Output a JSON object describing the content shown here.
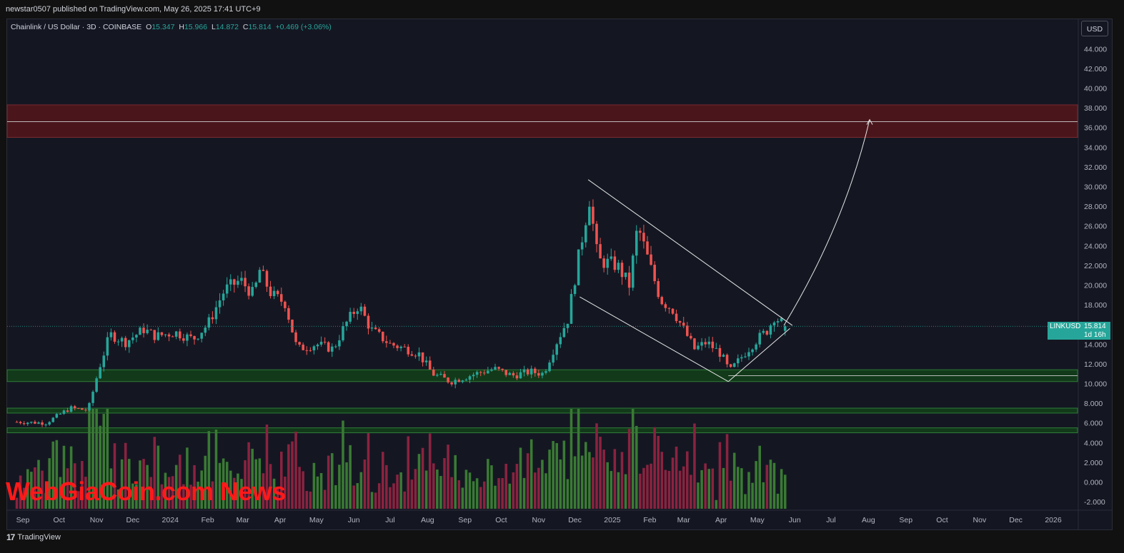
{
  "topbar": {
    "publisher_line": "newstar0507 published on TradingView.com, May 26, 2025 17:41 UTC+9"
  },
  "legend": {
    "title": "Chainlink / US Dollar · 3D · COINBASE",
    "o_label": "O",
    "o_value": "15.347",
    "h_label": "H",
    "h_value": "15.966",
    "l_label": "L",
    "l_value": "14.872",
    "c_label": "C",
    "c_value": "15.814",
    "change": "+0.469 (+3.06%)"
  },
  "currency_button": "USD",
  "price_tag": {
    "symbol": "LINKUSD",
    "price": "15.814",
    "countdown": "1d 16h"
  },
  "footer": {
    "logo_icon": "tradingview-icon",
    "brand": "TradingView"
  },
  "watermark": "WebGiaCoin.com News",
  "colors": {
    "up": "#26a69a",
    "down": "#ef5350",
    "vol_up": "#3a7a34",
    "vol_down": "#8a2340",
    "resistance_zone": "#4a161c",
    "support_zone": "#123a1a"
  },
  "chart_data": {
    "type": "candlestick",
    "title": "Chainlink / US Dollar · 3D · COINBASE",
    "y_ticks": [
      -2,
      0,
      2,
      4,
      6,
      8,
      10,
      12,
      14,
      16,
      18,
      20,
      22,
      24,
      26,
      28,
      30,
      32,
      34,
      36,
      38,
      40,
      42,
      44
    ],
    "x_ticks": [
      "Sep",
      "Oct",
      "Nov",
      "Dec",
      "2024",
      "Feb",
      "Mar",
      "Apr",
      "May",
      "Jun",
      "Jul",
      "Aug",
      "Sep",
      "Oct",
      "Nov",
      "Dec",
      "2025",
      "Feb",
      "Mar",
      "Apr",
      "May",
      "Jun",
      "Jul",
      "Aug",
      "Sep",
      "Oct",
      "Nov",
      "Dec",
      "2026"
    ],
    "last_price": 15.814,
    "price_path": [
      [
        "2023-08-27",
        6.1
      ],
      [
        "2023-09-20",
        6.0
      ],
      [
        "2023-10-10",
        7.5
      ],
      [
        "2023-10-25",
        7.3
      ],
      [
        "2023-11-03",
        11.5
      ],
      [
        "2023-11-12",
        15.0
      ],
      [
        "2023-11-25",
        14.2
      ],
      [
        "2023-12-10",
        15.5
      ],
      [
        "2023-12-20",
        14.8
      ],
      [
        "2024-01-05",
        15.2
      ],
      [
        "2024-01-20",
        14.5
      ],
      [
        "2024-02-01",
        16.0
      ],
      [
        "2024-02-15",
        19.5
      ],
      [
        "2024-02-28",
        20.5
      ],
      [
        "2024-03-10",
        19.0
      ],
      [
        "2024-03-15",
        21.5
      ],
      [
        "2024-03-25",
        19.0
      ],
      [
        "2024-04-05",
        18.2
      ],
      [
        "2024-04-15",
        13.5
      ],
      [
        "2024-05-01",
        14.0
      ],
      [
        "2024-05-15",
        13.5
      ],
      [
        "2024-05-25",
        16.0
      ],
      [
        "2024-06-05",
        18.0
      ],
      [
        "2024-06-15",
        15.5
      ],
      [
        "2024-07-01",
        14.0
      ],
      [
        "2024-07-15",
        13.5
      ],
      [
        "2024-07-25",
        13.0
      ],
      [
        "2024-08-05",
        11.0
      ],
      [
        "2024-08-20",
        10.2
      ],
      [
        "2024-09-10",
        11.0
      ],
      [
        "2024-09-25",
        11.5
      ],
      [
        "2024-10-10",
        10.8
      ],
      [
        "2024-10-25",
        11.2
      ],
      [
        "2024-11-05",
        11.0
      ],
      [
        "2024-11-15",
        14.0
      ],
      [
        "2024-11-25",
        16.5
      ],
      [
        "2024-12-05",
        23.5
      ],
      [
        "2024-12-13",
        28.8
      ],
      [
        "2024-12-20",
        22.5
      ],
      [
        "2025-01-05",
        22.0
      ],
      [
        "2025-01-15",
        20.0
      ],
      [
        "2025-01-22",
        26.0
      ],
      [
        "2025-02-01",
        22.0
      ],
      [
        "2025-02-10",
        18.5
      ],
      [
        "2025-02-20",
        17.5
      ],
      [
        "2025-03-01",
        15.5
      ],
      [
        "2025-03-10",
        13.5
      ],
      [
        "2025-03-20",
        14.2
      ],
      [
        "2025-04-01",
        13.0
      ],
      [
        "2025-04-08",
        11.2
      ],
      [
        "2025-04-20",
        13.0
      ],
      [
        "2025-05-01",
        14.5
      ],
      [
        "2025-05-10",
        15.5
      ],
      [
        "2025-05-15",
        16.8
      ],
      [
        "2025-05-25",
        15.8
      ]
    ],
    "zones": [
      {
        "type": "resistance",
        "from": 35.0,
        "to": 38.3,
        "mid": 36.6
      },
      {
        "type": "support",
        "from": 10.2,
        "to": 11.4,
        "mid": 10.8
      },
      {
        "type": "support",
        "from": 7.0,
        "to": 7.5
      },
      {
        "type": "support",
        "from": 5.0,
        "to": 5.5
      }
    ],
    "channel_upper": [
      [
        "2024-12-12",
        30.7
      ],
      [
        "2025-05-30",
        15.9
      ]
    ],
    "channel_lower": [
      [
        "2024-12-05",
        18.8
      ],
      [
        "2025-04-07",
        10.2
      ]
    ],
    "lower_support_line": [
      [
        "2025-04-07",
        10.2
      ],
      [
        "2025-05-28",
        15.6
      ]
    ],
    "projection_arrow": [
      [
        "2025-05-23",
        15.9
      ],
      [
        "2025-07-12",
        26.0
      ],
      [
        "2025-08-02",
        36.8
      ]
    ]
  }
}
